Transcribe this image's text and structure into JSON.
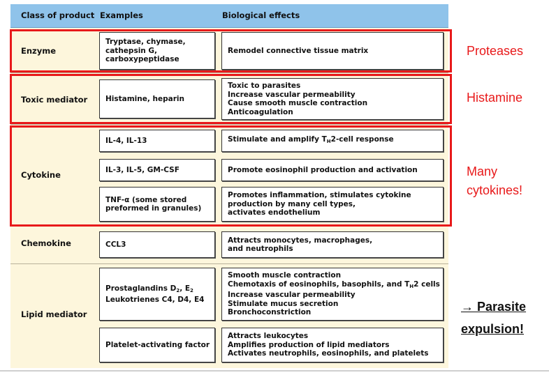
{
  "header": {
    "class": "Class of product",
    "examples": "Examples",
    "effects": "Biological effects"
  },
  "rows": {
    "enzyme": {
      "class": "Enzyme",
      "examples": [
        "Tryptase, chymase,",
        "cathepsin G,",
        "carboxypeptidase"
      ],
      "effects": [
        "Remodel connective tissue matrix"
      ]
    },
    "toxic": {
      "class": "Toxic mediator",
      "examples": [
        "Histamine, heparin"
      ],
      "effects": [
        "Toxic to parasites",
        "Increase vascular permeability",
        "Cause smooth muscle contraction",
        "Anticoagulation"
      ]
    },
    "cytokine": {
      "class": "Cytokine",
      "sub": [
        {
          "examples": [
            "IL-4, IL-13"
          ],
          "effects_pre": "Stimulate and amplify T",
          "effects_sub": "H",
          "effects_post": "2-cell response"
        },
        {
          "examples": [
            "IL-3, IL-5, GM-CSF"
          ],
          "effects": [
            "Promote eosinophil production and activation"
          ]
        },
        {
          "examples": [
            "TNF-α (some stored",
            "preformed in granules)"
          ],
          "effects": [
            "Promotes inflammation, stimulates cytokine",
            "production by many cell types,",
            "activates endothelium"
          ]
        }
      ]
    },
    "chemokine": {
      "class": "Chemokine",
      "examples": [
        "CCL3"
      ],
      "effects": [
        "Attracts monocytes, macrophages,",
        "and neutrophils"
      ]
    },
    "lipid": {
      "class": "Lipid mediator",
      "sub": [
        {
          "ex1_pre": "Prostaglandins D",
          "ex1_sub1": "2",
          "ex1_mid": ", E",
          "ex1_sub2": "2",
          "ex2": "Leukotrienes C4, D4, E4",
          "eff1": "Smooth muscle contraction",
          "eff2_pre": "Chemotaxis of eosinophils, basophils, and T",
          "eff2_sub": "H",
          "eff2_post": "2 cells",
          "eff3": "Increase vascular permeability",
          "eff4": "Stimulate mucus secretion",
          "eff5": "Bronchoconstriction"
        },
        {
          "examples": [
            "Platelet-activating factor"
          ],
          "effects": [
            "Attracts leukocytes",
            "Amplifies production of lipid mediators",
            "Activates neutrophils, eosinophils, and platelets"
          ]
        }
      ]
    }
  },
  "annotations": {
    "proteases": "Proteases",
    "histamine": "Histamine",
    "many_line1": "Many",
    "many_line2": "cytokines!",
    "parasite_line1": "→ Parasite",
    "parasite_line2": "expulsion!"
  },
  "colors": {
    "header_bg": "#8fc3ea",
    "table_bg": "#fdf6dc",
    "highlight_red": "#e8191a"
  }
}
